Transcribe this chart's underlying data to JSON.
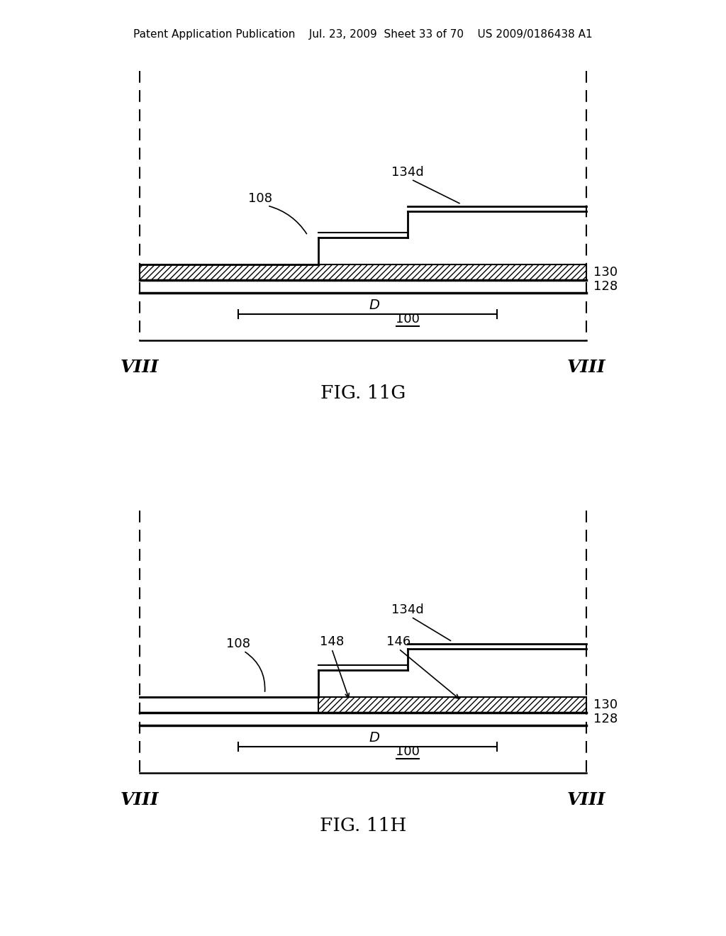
{
  "bg_color": "#ffffff",
  "line_color": "#000000",
  "header_text": "Patent Application Publication    Jul. 23, 2009  Sheet 33 of 70    US 2009/0186438 A1",
  "fig11g_label": "FIG. 11G",
  "fig11h_label": "FIG. 11H",
  "viii_label": "VIII"
}
